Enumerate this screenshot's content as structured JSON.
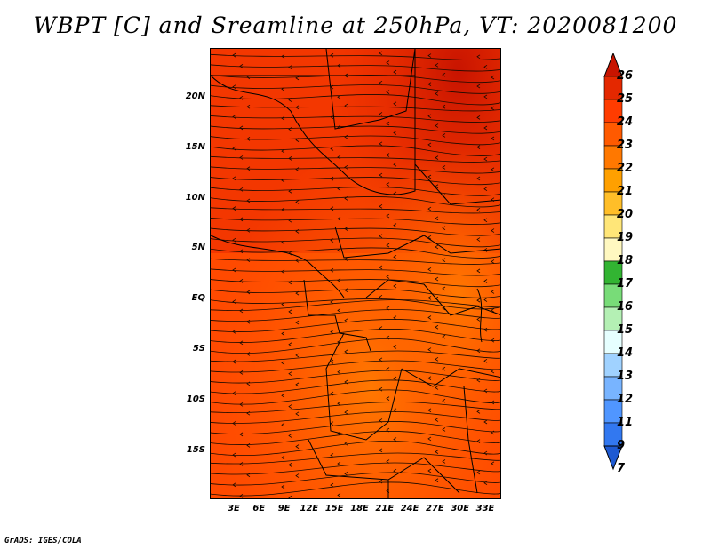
{
  "title": "WBPT [C] and Sreamline at 250hPa, VT: 2020081200",
  "credit": "GrADS: IGES/COLA",
  "map": {
    "lat_labels": [
      "20N",
      "15N",
      "10N",
      "5N",
      "EQ",
      "5S",
      "10S",
      "15S"
    ],
    "lon_labels": [
      "3E",
      "6E",
      "9E",
      "12E",
      "15E",
      "18E",
      "21E",
      "24E",
      "27E",
      "30E",
      "33E"
    ],
    "fill_dominant": "#ff5a00"
  },
  "colorbar": {
    "labels": [
      "26",
      "25",
      "24",
      "23",
      "22",
      "21",
      "20",
      "19",
      "18",
      "17",
      "16",
      "15",
      "14",
      "13",
      "12",
      "11",
      "9",
      "7"
    ],
    "colors": [
      "#c81400",
      "#e42800",
      "#ff3c00",
      "#ff5a00",
      "#ff7800",
      "#ffa000",
      "#ffbe28",
      "#ffe678",
      "#fff8c0",
      "#32b432",
      "#78dc78",
      "#b4f0b4",
      "#e6ffff",
      "#a0d2ff",
      "#78b4ff",
      "#5096ff",
      "#3278f0",
      "#1e5ad2"
    ]
  }
}
